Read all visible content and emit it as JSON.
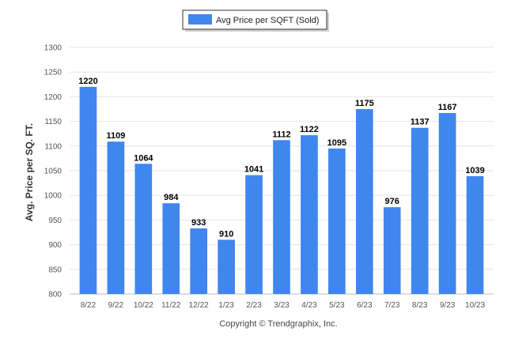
{
  "chart_data": {
    "type": "bar",
    "categories": [
      "8/22",
      "9/22",
      "10/22",
      "11/22",
      "12/22",
      "1/23",
      "2/23",
      "3/23",
      "4/23",
      "5/23",
      "6/23",
      "7/23",
      "8/23",
      "9/23",
      "10/23"
    ],
    "series": [
      {
        "name": "Avg Price per SQFT (Sold)",
        "values": [
          1220,
          1109,
          1064,
          984,
          933,
          910,
          1041,
          1112,
          1122,
          1095,
          1175,
          976,
          1137,
          1167,
          1039
        ]
      }
    ],
    "ylabel": "Avg. Price per SQ. FT.",
    "xlabel": "",
    "ylim": [
      800,
      1300
    ],
    "yticks": [
      800,
      850,
      900,
      950,
      1000,
      1050,
      1100,
      1150,
      1200,
      1250,
      1300
    ],
    "grid": true,
    "legend_position": "top-center",
    "data_labels": true,
    "bar_color": "#3f86ef"
  },
  "footer": {
    "copyright": "Copyright © Trendgraphix, Inc."
  }
}
